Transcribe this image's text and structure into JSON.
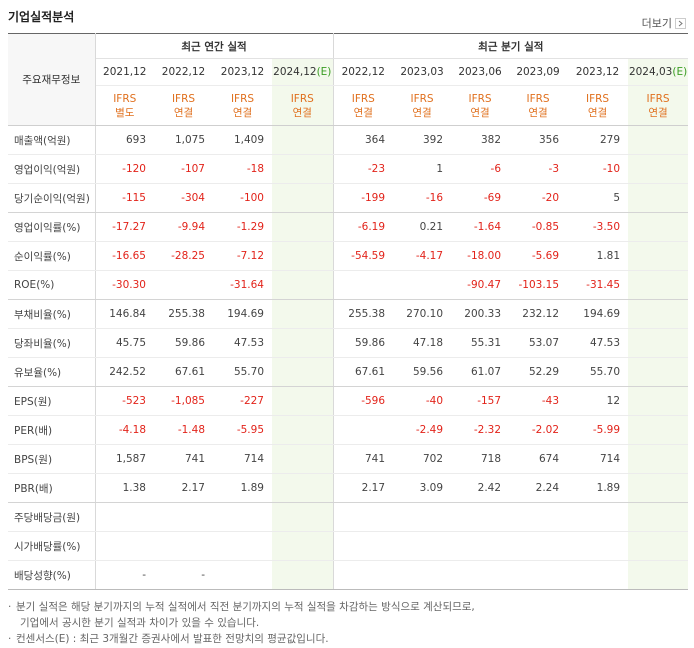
{
  "header": {
    "title": "기업실적분석",
    "more": "더보기"
  },
  "table": {
    "corner": "주요재무정보",
    "groups": [
      {
        "label": "최근 연간 실적",
        "span": 4
      },
      {
        "label": "최근 분기 실적",
        "span": 6
      }
    ],
    "columns": [
      {
        "period": "2021,12",
        "standard": "IFRS",
        "basis": "별도"
      },
      {
        "period": "2022,12",
        "standard": "IFRS",
        "basis": "연결"
      },
      {
        "period": "2023,12",
        "standard": "IFRS",
        "basis": "연결"
      },
      {
        "period": "2024,12",
        "estimate": "(E)",
        "standard": "IFRS",
        "basis": "연결"
      },
      {
        "period": "2022,12",
        "standard": "IFRS",
        "basis": "연결"
      },
      {
        "period": "2023,03",
        "standard": "IFRS",
        "basis": "연결"
      },
      {
        "period": "2023,06",
        "standard": "IFRS",
        "basis": "연결"
      },
      {
        "period": "2023,09",
        "standard": "IFRS",
        "basis": "연결"
      },
      {
        "period": "2023,12",
        "standard": "IFRS",
        "basis": "연결"
      },
      {
        "period": "2024,03",
        "estimate": "(E)",
        "standard": "IFRS",
        "basis": "연결"
      }
    ],
    "rows": [
      {
        "label": "매출액(억원)",
        "values": [
          "693",
          "1,075",
          "1,409",
          null,
          "364",
          "392",
          "382",
          "356",
          "279",
          null
        ]
      },
      {
        "label": "영업이익(억원)",
        "values": [
          "-120",
          "-107",
          "-18",
          null,
          "-23",
          "1",
          "-6",
          "-3",
          "-10",
          null
        ]
      },
      {
        "label": "당기순이익(억원)",
        "values": [
          "-115",
          "-304",
          "-100",
          null,
          "-199",
          "-16",
          "-69",
          "-20",
          "5",
          null
        ]
      },
      {
        "label": "영업이익률(%)",
        "values": [
          "-17.27",
          "-9.94",
          "-1.29",
          null,
          "-6.19",
          "0.21",
          "-1.64",
          "-0.85",
          "-3.50",
          null
        ]
      },
      {
        "label": "순이익률(%)",
        "values": [
          "-16.65",
          "-28.25",
          "-7.12",
          null,
          "-54.59",
          "-4.17",
          "-18.00",
          "-5.69",
          "1.81",
          null
        ]
      },
      {
        "label": "ROE(%)",
        "values": [
          "-30.30",
          null,
          "-31.64",
          null,
          null,
          null,
          "-90.47",
          "-103.15",
          "-31.45",
          null
        ]
      },
      {
        "label": "부채비율(%)",
        "values": [
          "146.84",
          "255.38",
          "194.69",
          null,
          "255.38",
          "270.10",
          "200.33",
          "232.12",
          "194.69",
          null
        ]
      },
      {
        "label": "당좌비율(%)",
        "values": [
          "45.75",
          "59.86",
          "47.53",
          null,
          "59.86",
          "47.18",
          "55.31",
          "53.07",
          "47.53",
          null
        ]
      },
      {
        "label": "유보율(%)",
        "values": [
          "242.52",
          "67.61",
          "55.70",
          null,
          "67.61",
          "59.56",
          "61.07",
          "52.29",
          "55.70",
          null
        ]
      },
      {
        "label": "EPS(원)",
        "values": [
          "-523",
          "-1,085",
          "-227",
          null,
          "-596",
          "-40",
          "-157",
          "-43",
          "12",
          null
        ]
      },
      {
        "label": "PER(배)",
        "values": [
          "-4.18",
          "-1.48",
          "-5.95",
          null,
          null,
          "-2.49",
          "-2.32",
          "-2.02",
          "-5.99",
          null
        ]
      },
      {
        "label": "BPS(원)",
        "values": [
          "1,587",
          "741",
          "714",
          null,
          "741",
          "702",
          "718",
          "674",
          "714",
          null
        ]
      },
      {
        "label": "PBR(배)",
        "values": [
          "1.38",
          "2.17",
          "1.89",
          null,
          "2.17",
          "3.09",
          "2.42",
          "2.24",
          "1.89",
          null
        ]
      },
      {
        "label": "주당배당금(원)",
        "values": [
          null,
          null,
          null,
          null,
          null,
          null,
          null,
          null,
          null,
          null
        ]
      },
      {
        "label": "시가배당률(%)",
        "values": [
          null,
          null,
          null,
          null,
          null,
          null,
          null,
          null,
          null,
          null
        ]
      },
      {
        "label": "배당성향(%)",
        "values": [
          "-",
          "-",
          null,
          null,
          null,
          null,
          null,
          null,
          null,
          null
        ]
      }
    ]
  },
  "notes": [
    {
      "lines": [
        "분기 실적은 해당 분기까지의 누적 실적에서 직전 분기까지의 누적 실적을 차감하는 방식으로 계산되므로,",
        "기업에서 공시한 분기 실적과 차이가 있을 수 있습니다."
      ]
    },
    {
      "lines": [
        "컨센서스(E) : 최근 3개월간 증권사에서 발표한 전망치의 평균값입니다."
      ]
    }
  ]
}
